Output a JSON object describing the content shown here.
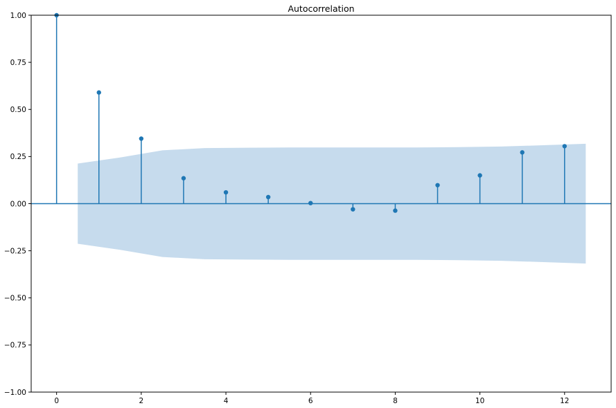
{
  "chart_data": {
    "type": "stem",
    "title": "Autocorrelation",
    "xlabel": "",
    "ylabel": "",
    "xlim": [
      -0.6,
      13.1
    ],
    "ylim": [
      -1.0,
      1.0
    ],
    "x_ticks": [
      0,
      2,
      4,
      6,
      8,
      10,
      12
    ],
    "y_ticks": [
      -1.0,
      -0.75,
      -0.5,
      -0.25,
      0.0,
      0.25,
      0.5,
      0.75,
      1.0
    ],
    "x_tick_labels": [
      "0",
      "2",
      "4",
      "6",
      "8",
      "10",
      "12"
    ],
    "y_tick_labels": [
      "−1.00",
      "−0.75",
      "−0.50",
      "−0.25",
      "0.00",
      "0.25",
      "0.50",
      "0.75",
      "1.00"
    ],
    "lags": [
      0,
      1,
      2,
      3,
      4,
      5,
      6,
      7,
      8,
      9,
      10,
      11,
      12
    ],
    "values": [
      1.0,
      0.59,
      0.345,
      0.135,
      0.06,
      0.035,
      0.003,
      -0.03,
      -0.037,
      0.098,
      0.15,
      0.272,
      0.305
    ],
    "confidence_band": {
      "x": [
        0.5,
        1.5,
        2.5,
        3.5,
        4.5,
        5.5,
        6.5,
        7.5,
        8.5,
        9.5,
        10.5,
        11.5,
        12.5
      ],
      "upper": [
        0.213,
        0.245,
        0.283,
        0.295,
        0.297,
        0.298,
        0.298,
        0.298,
        0.298,
        0.3,
        0.303,
        0.31,
        0.318
      ],
      "lower": [
        -0.213,
        -0.245,
        -0.283,
        -0.295,
        -0.297,
        -0.298,
        -0.298,
        -0.298,
        -0.298,
        -0.3,
        -0.303,
        -0.31,
        -0.318
      ]
    },
    "grid": false,
    "legend": "none",
    "colors": {
      "stem": "#1f77b4",
      "band": "#c6dbed",
      "axis": "#000000"
    }
  }
}
